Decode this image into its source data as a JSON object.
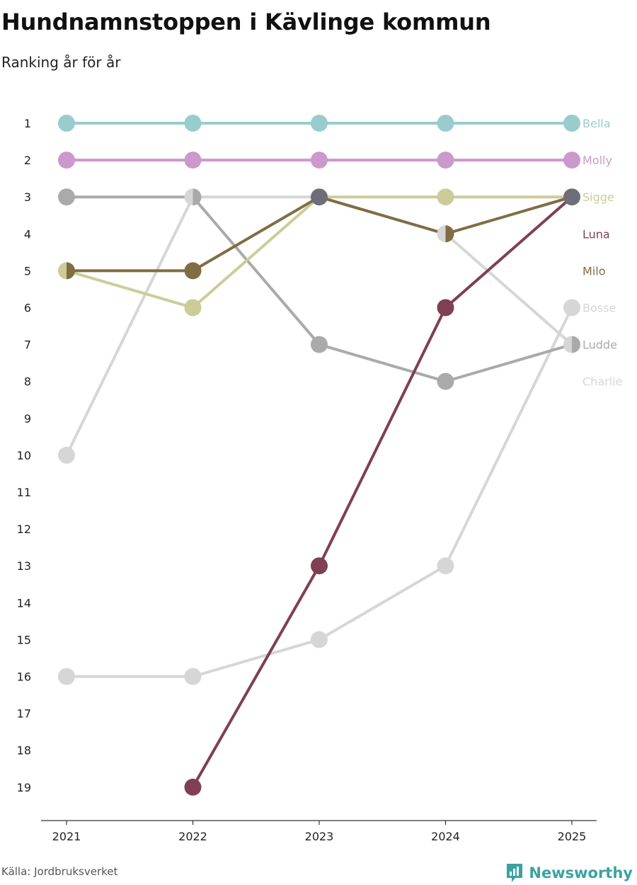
{
  "header": {
    "title": "Hundnamnstoppen i Kävlinge kommun",
    "subtitle": "Ranking år för år"
  },
  "footer": {
    "source": "Källa: Jordbruksverket",
    "brand": "Newsworthy",
    "brand_icon": "newsworthy-logo-icon",
    "brand_color": "#3aa3a0"
  },
  "chart_data": {
    "type": "line",
    "title": "Hundnamnstoppen i Kävlinge kommun",
    "subtitle": "Ranking år för år",
    "xlabel": "",
    "ylabel": "",
    "x": [
      "2021",
      "2022",
      "2023",
      "2024",
      "2025"
    ],
    "ylim": [
      1,
      19
    ],
    "y_inverted": true,
    "y_ticks": [
      1,
      2,
      3,
      4,
      5,
      6,
      7,
      8,
      9,
      10,
      11,
      12,
      13,
      14,
      15,
      16,
      17,
      18,
      19
    ],
    "grid": false,
    "legend": "right-end labels",
    "series": [
      {
        "name": "Charlie",
        "color": "#d6d6d6",
        "values": [
          16,
          16,
          15,
          13,
          6
        ]
      },
      {
        "name": "Bosse",
        "color": "#d6d6d6",
        "values": [
          10,
          3,
          3,
          4,
          7
        ]
      },
      {
        "name": "Ludde",
        "color": "#aaaaaa",
        "values": [
          3,
          3,
          7,
          8,
          7
        ]
      },
      {
        "name": "Sigge",
        "color": "#cccc99",
        "values": [
          5,
          6,
          3,
          3,
          3
        ]
      },
      {
        "name": "Milo",
        "color": "#806d43",
        "values": [
          5,
          5,
          3,
          4,
          3
        ]
      },
      {
        "name": "Luna",
        "color": "#803f53",
        "values": [
          null,
          19,
          13,
          6,
          3
        ]
      },
      {
        "name": "Molly",
        "color": "#cc99cc",
        "values": [
          2,
          2,
          2,
          2,
          2
        ]
      },
      {
        "name": "Bella",
        "color": "#99cccc",
        "values": [
          1,
          1,
          1,
          1,
          1
        ]
      }
    ],
    "end_labels": [
      {
        "name": "Bella",
        "rank": 1,
        "color": "#99cccc"
      },
      {
        "name": "Molly",
        "rank": 2,
        "color": "#cc99cc"
      },
      {
        "name": "Sigge",
        "rank": 3,
        "color": "#cccc99"
      },
      {
        "name": "Luna",
        "rank": 4,
        "color": "#803f53"
      },
      {
        "name": "Milo",
        "rank": 5,
        "color": "#806d43"
      },
      {
        "name": "Bosse",
        "rank": 6,
        "color": "#d6d6d6"
      },
      {
        "name": "Ludde",
        "rank": 7,
        "color": "#aaaaaa"
      },
      {
        "name": "Charlie",
        "rank": 8,
        "color": "#d6d6d6"
      }
    ],
    "tied_color": "#6e6e78"
  }
}
